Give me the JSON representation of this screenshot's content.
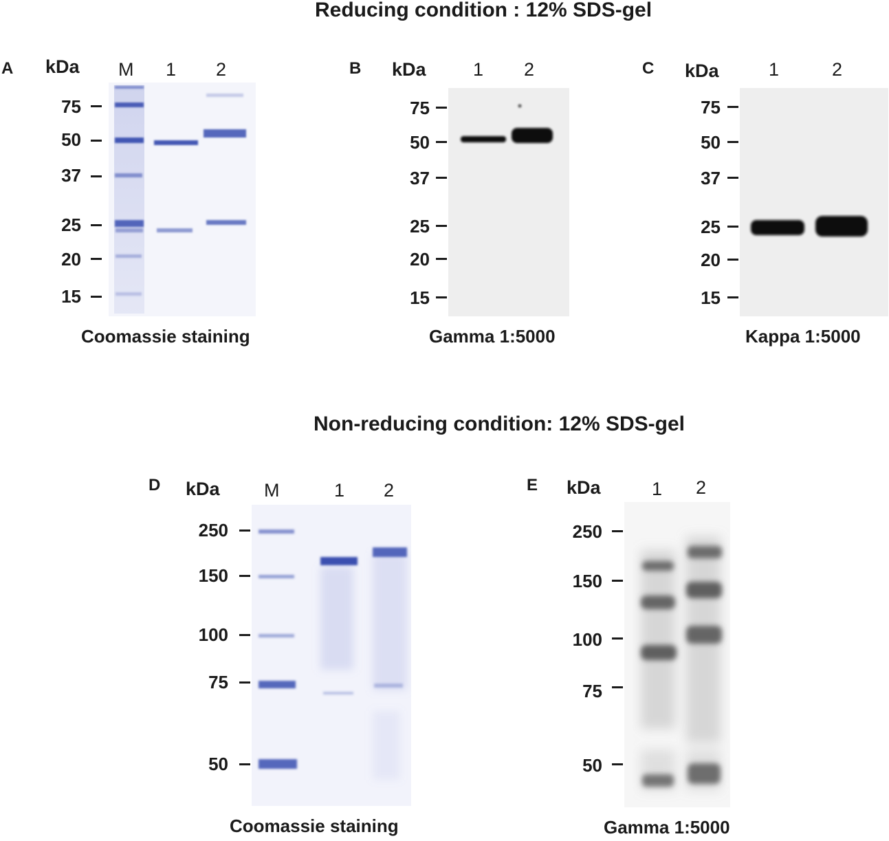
{
  "figure": {
    "title_top": "Reducing condition : 12% SDS-gel",
    "title_bottom": "Non-reducing condition: 12% SDS-gel",
    "kda_label": "kDa",
    "panels": {
      "A": {
        "letter": "A",
        "lanes": [
          "M",
          "1",
          "2"
        ],
        "markers": [
          "75",
          "50",
          "37",
          "25",
          "20",
          "15"
        ],
        "caption": "Coomassie staining"
      },
      "B": {
        "letter": "B",
        "lanes": [
          "1",
          "2"
        ],
        "markers": [
          "75",
          "50",
          "37",
          "25",
          "20",
          "15"
        ],
        "caption": "Gamma 1:5000"
      },
      "C": {
        "letter": "C",
        "lanes": [
          "1",
          "2"
        ],
        "markers": [
          "75",
          "50",
          "37",
          "25",
          "20",
          "15"
        ],
        "caption": "Kappa 1:5000"
      },
      "D": {
        "letter": "D",
        "lanes": [
          "M",
          "1",
          "2"
        ],
        "markers": [
          "250",
          "150",
          "100",
          "75",
          "50"
        ],
        "caption": "Coomassie staining"
      },
      "E": {
        "letter": "E",
        "lanes": [
          "1",
          "2"
        ],
        "markers": [
          "250",
          "150",
          "100",
          "75",
          "50"
        ],
        "caption": "Gamma 1:5000"
      }
    }
  },
  "colors": {
    "coomassie_band": "#3a4fb0",
    "coomassie_bg": "#f2f3fb",
    "blot_band": "#0d0d0d",
    "blot_bg": "#eeeeee",
    "gel_e_bg": "#f6f6f6"
  }
}
